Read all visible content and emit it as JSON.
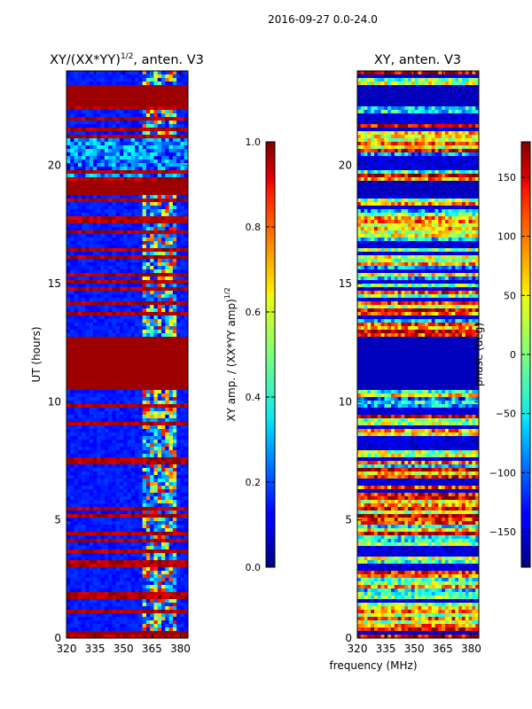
{
  "figure_title": "2016-09-27 0.0-24.0",
  "chart_data": [
    {
      "type": "heatmap",
      "title": "XY/(XX*YY)",
      "title_superscript": "1/2",
      "title_suffix": ", anten. V3",
      "xlabel": "",
      "ylabel": "UT (hours)",
      "xlim": [
        320,
        384
      ],
      "ylim": [
        0,
        24
      ],
      "x_ticks": [
        "320",
        "335",
        "350",
        "365",
        "380"
      ],
      "x_tick_values": [
        320,
        335,
        350,
        365,
        380
      ],
      "y_ticks": [
        "0",
        "5",
        "10",
        "15",
        "20"
      ],
      "y_tick_values": [
        0,
        5,
        10,
        15,
        20
      ],
      "colormap": "jet",
      "colorbar": {
        "label": "XY amp. / (XX*YY amp)",
        "label_superscript": "1/2",
        "min": 0.0,
        "max": 1.0,
        "ticks": [
          "0.0",
          "0.2",
          "0.4",
          "0.6",
          "0.8",
          "1.0"
        ],
        "tick_values": [
          0.0,
          0.2,
          0.4,
          0.6,
          0.8,
          1.0
        ]
      },
      "saturated_intervals_hours": [
        [
          0.15,
          0.35
        ],
        [
          10.45,
          12.7
        ],
        [
          18.7,
          19.4
        ],
        [
          22.45,
          23.45
        ]
      ],
      "noise_band_hours": [
        19.4,
        21.1
      ],
      "rfi_band_mhz": [
        361,
        378
      ],
      "background_value": 0.12
    },
    {
      "type": "heatmap",
      "title": "XY, anten. V3",
      "xlabel": "frequency (MHz)",
      "ylabel": "",
      "xlim": [
        320,
        384
      ],
      "ylim": [
        0,
        24
      ],
      "x_ticks": [
        "320",
        "335",
        "350",
        "365",
        "380"
      ],
      "x_tick_values": [
        320,
        335,
        350,
        365,
        380
      ],
      "y_ticks": [
        "0",
        "5",
        "10",
        "15",
        "20"
      ],
      "y_tick_values": [
        0,
        5,
        10,
        15,
        20
      ],
      "colormap": "jet",
      "colorbar": {
        "label": "phase (deg)",
        "min": -180,
        "max": 180,
        "ticks": [
          "−150",
          "−100",
          "−50",
          "0",
          "50",
          "100",
          "150"
        ],
        "tick_values": [
          -150,
          -100,
          -50,
          0,
          50,
          100,
          150
        ]
      },
      "blank_intervals_hours": [
        [
          10.45,
          12.7
        ],
        [
          18.7,
          19.4
        ],
        [
          22.45,
          23.45
        ]
      ]
    }
  ]
}
